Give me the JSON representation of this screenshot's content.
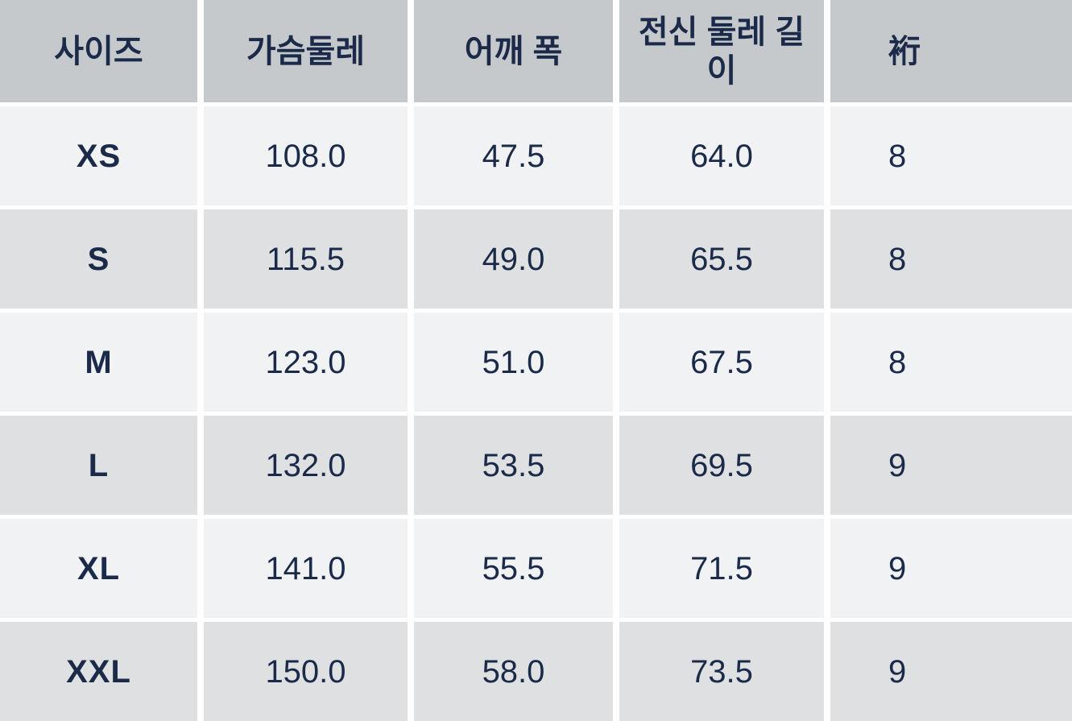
{
  "size_chart": {
    "columns": [
      {
        "label": "사이즈"
      },
      {
        "label": "가슴둘레"
      },
      {
        "label": "어깨 폭"
      },
      {
        "label": "전신 둘레 길이"
      },
      {
        "label": "裄",
        "clipped": "true"
      }
    ],
    "rows": [
      {
        "size": "XS",
        "chest": "108.0",
        "shoulder": "47.5",
        "length": "64.0",
        "sleeve": "8"
      },
      {
        "size": "S",
        "chest": "115.5",
        "shoulder": "49.0",
        "length": "65.5",
        "sleeve": "8"
      },
      {
        "size": "M",
        "chest": "123.0",
        "shoulder": "51.0",
        "length": "67.5",
        "sleeve": "8"
      },
      {
        "size": "L",
        "chest": "132.0",
        "shoulder": "53.5",
        "length": "69.5",
        "sleeve": "9"
      },
      {
        "size": "XL",
        "chest": "141.0",
        "shoulder": "55.5",
        "length": "71.5",
        "sleeve": "9"
      },
      {
        "size": "XXL",
        "chest": "150.0",
        "shoulder": "58.0",
        "length": "73.5",
        "sleeve": "9"
      }
    ]
  },
  "colors": {
    "header_bg": "#c6c9cc",
    "row_light": "#f1f2f4",
    "row_dark": "#dfe0e2",
    "text": "#1b2a49",
    "gap": "#ffffff"
  }
}
